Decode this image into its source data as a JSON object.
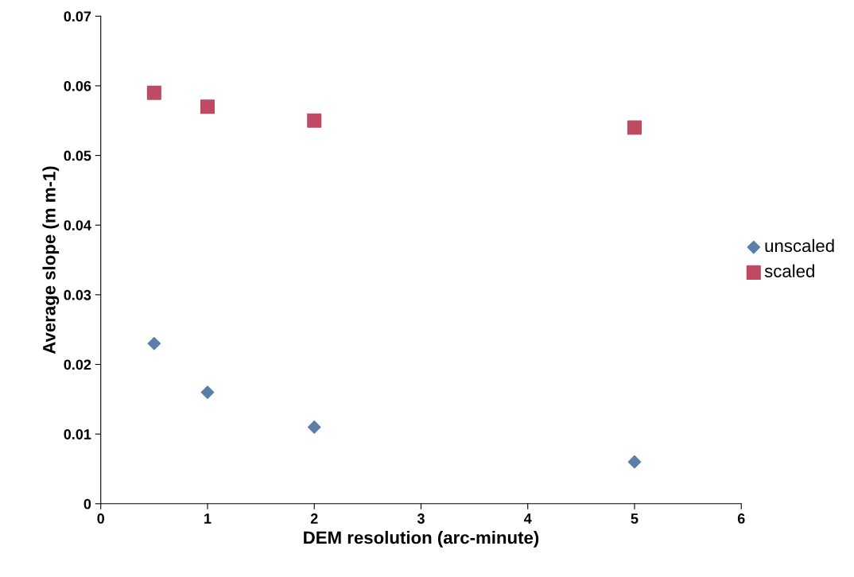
{
  "chart_data": {
    "type": "scatter",
    "xlabel": "DEM resolution (arc-minute)",
    "ylabel": "Average slope (m m-1)",
    "xlim": [
      0,
      6
    ],
    "xticks": [
      0,
      1,
      2,
      3,
      4,
      5,
      6
    ],
    "ylim": [
      0,
      0.07
    ],
    "yticks": [
      0,
      0.01,
      0.02,
      0.03,
      0.04,
      0.05,
      0.06,
      0.07
    ],
    "grid": false,
    "legend": "right",
    "series": [
      {
        "name": "unscaled",
        "color": "#5b7fa8",
        "marker": "diamond",
        "x": [
          0.5,
          1,
          2,
          5
        ],
        "values": [
          0.023,
          0.016,
          0.011,
          0.006
        ]
      },
      {
        "name": "scaled",
        "color": "#be4b63",
        "marker": "square",
        "x": [
          0.5,
          1,
          2,
          5
        ],
        "values": [
          0.059,
          0.057,
          0.055,
          0.054
        ]
      }
    ]
  }
}
